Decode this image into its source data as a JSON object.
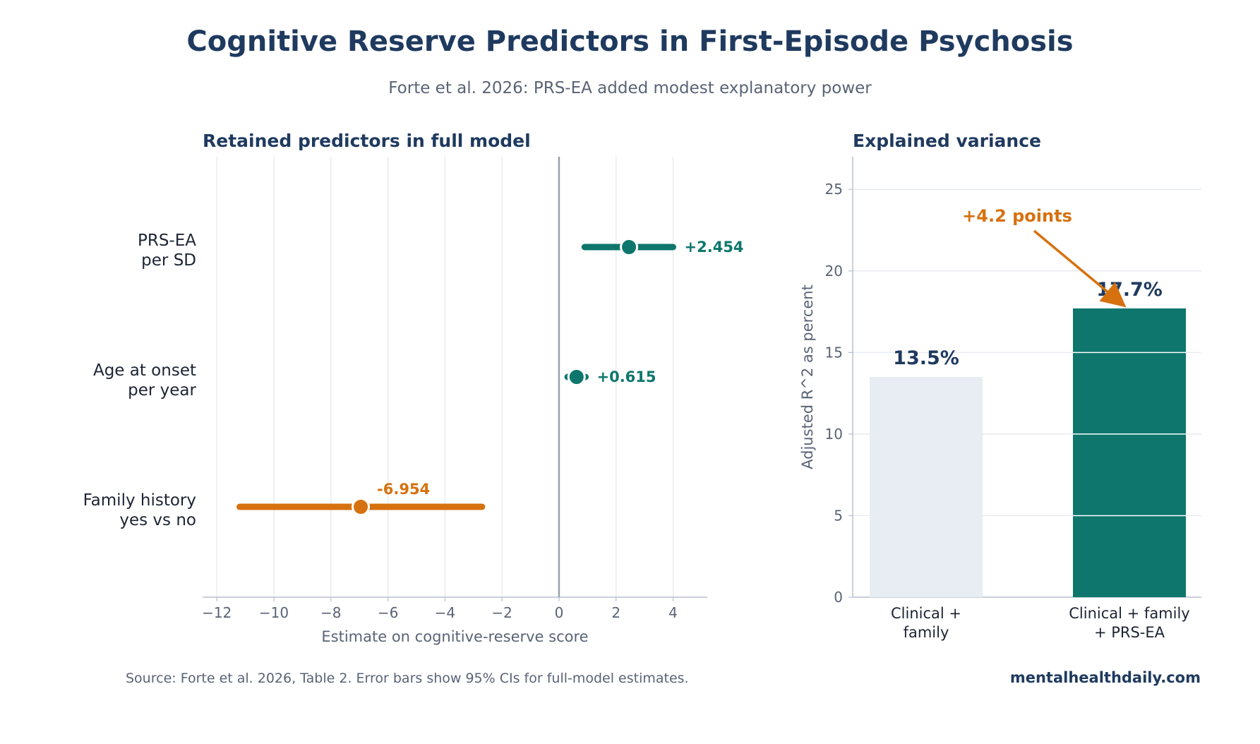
{
  "title": "Cognitive Reserve Predictors in First-Episode Psychosis",
  "subtitle": "Forte et al. 2026: PRS-EA added modest explanatory power",
  "footer": {
    "source": "Source: Forte et al. 2026, Table 2. Error bars show 95% CIs for full-model estimates.",
    "site": "mentalhealthdaily.com"
  },
  "colors": {
    "navy": "#1f3a5f",
    "teal": "#0e766c",
    "orange": "#d6710f",
    "light_bar": "#e8edf4",
    "grid": "#e3e7ee",
    "text_muted": "#5a6375",
    "zero_line": "#98a1ad"
  },
  "chart_data": [
    {
      "type": "scatter",
      "title": "Retained predictors in full model",
      "xlabel": "Estimate on cognitive-reserve score",
      "ylabel": "",
      "xlim": [
        -12.5,
        5.2
      ],
      "x_ticks": [
        -12,
        -10,
        -8,
        -6,
        -4,
        -2,
        0,
        2,
        4
      ],
      "x_tick_labels": [
        "−12",
        "−10",
        "−8",
        "−6",
        "−4",
        "−2",
        "0",
        "2",
        "4"
      ],
      "grid": "vertical",
      "reference_line": 0,
      "predictors": [
        {
          "label_line1": "PRS-EA",
          "label_line2": "per SD",
          "estimate": 2.454,
          "ci_low": 0.9,
          "ci_high": 4.0,
          "value_label": "+2.454",
          "color": "#0e766c"
        },
        {
          "label_line1": "Age at onset",
          "label_line2": "per year",
          "estimate": 0.615,
          "ci_low": 0.3,
          "ci_high": 0.93,
          "value_label": "+0.615",
          "color": "#0e766c"
        },
        {
          "label_line1": "Family history",
          "label_line2": "yes vs no",
          "estimate": -6.954,
          "ci_low": -11.2,
          "ci_high": -2.7,
          "value_label": "-6.954",
          "color": "#d6710f"
        }
      ]
    },
    {
      "type": "bar",
      "title": "Explained variance",
      "xlabel": "",
      "ylabel": "Adjusted R^2 as percent",
      "ylim": [
        0,
        27
      ],
      "y_ticks": [
        0,
        5,
        10,
        15,
        20,
        25
      ],
      "grid": "horizontal",
      "bars": [
        {
          "label_line1": "Clinical +",
          "label_line2": "family",
          "value": 13.5,
          "value_label": "13.5%",
          "color": "#e8edf4"
        },
        {
          "label_line1": "Clinical + family",
          "label_line2": "+ PRS-EA",
          "value": 17.7,
          "value_label": "17.7%",
          "color": "#0e766c"
        }
      ],
      "annotation": {
        "text": "+4.2 points",
        "color": "#d6710f"
      }
    }
  ]
}
